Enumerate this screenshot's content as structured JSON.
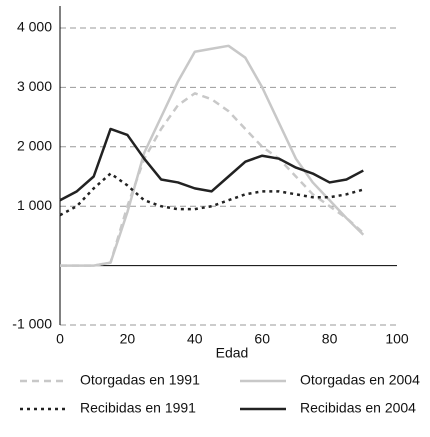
{
  "chart_data": {
    "type": "line",
    "x_label": "Edad",
    "x": [
      0,
      5,
      10,
      15,
      20,
      25,
      30,
      35,
      40,
      45,
      50,
      55,
      60,
      65,
      70,
      75,
      80,
      85,
      90
    ],
    "xlim": [
      0,
      100
    ],
    "xticks": [
      0,
      20,
      40,
      60,
      80,
      100
    ],
    "ylim": [
      -1000,
      4000
    ],
    "yticks": [
      {
        "value": -1000,
        "label": "-1 000"
      },
      {
        "value": 1000,
        "label": "1 000"
      },
      {
        "value": 2000,
        "label": "2 000"
      },
      {
        "value": 3000,
        "label": "3 000"
      },
      {
        "value": 4000,
        "label": "4 000"
      }
    ],
    "grid": true,
    "legend": "bottom",
    "series": [
      {
        "name": "Otorgadas en 1991",
        "color": "#c8c8c8",
        "dash": "dashed",
        "values": [
          0,
          0,
          0,
          50,
          1000,
          1800,
          2300,
          2700,
          2900,
          2800,
          2600,
          2300,
          2000,
          1800,
          1500,
          1200,
          1000,
          800,
          550
        ]
      },
      {
        "name": "Otorgadas en 2004",
        "color": "#c8c8c8",
        "dash": "solid",
        "values": [
          0,
          0,
          0,
          50,
          900,
          1900,
          2500,
          3100,
          3600,
          3650,
          3700,
          3500,
          3000,
          2400,
          1800,
          1400,
          1100,
          800,
          520
        ]
      },
      {
        "name": "Recibidas en 1991",
        "color": "#222222",
        "dash": "dotted",
        "values": [
          850,
          1000,
          1300,
          1550,
          1350,
          1100,
          1000,
          950,
          950,
          1000,
          1100,
          1200,
          1250,
          1250,
          1200,
          1150,
          1150,
          1200,
          1280
        ]
      },
      {
        "name": "Recibidas en 2004",
        "color": "#222222",
        "dash": "solid",
        "values": [
          1100,
          1250,
          1500,
          2300,
          2200,
          1800,
          1450,
          1400,
          1300,
          1250,
          1500,
          1750,
          1850,
          1800,
          1650,
          1550,
          1400,
          1450,
          1600
        ]
      }
    ]
  }
}
